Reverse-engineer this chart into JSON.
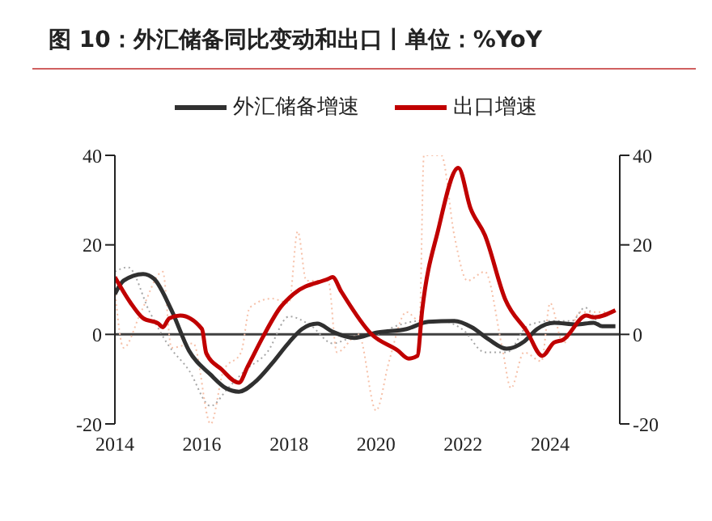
{
  "chart_data": {
    "type": "line",
    "title": "图 10：外汇储备同比变动和出口丨单位：%YoY",
    "legend": "top",
    "marker": "none",
    "xlim": [
      2014,
      2025.6
    ],
    "xticks": [
      2014,
      2016,
      2018,
      2020,
      2022,
      2024
    ],
    "ylim": [
      -20,
      40
    ],
    "yticks": [
      -20,
      0,
      20,
      40
    ],
    "y2lim": [
      -20,
      40
    ],
    "y2ticks": [
      -20,
      0,
      20,
      40
    ],
    "ref_lines": [
      {
        "axis": "y",
        "value": 0,
        "color": "#404040"
      }
    ],
    "series": [
      {
        "color": "#a6a6a6",
        "line_style": "dotted",
        "x": [
          2014.0,
          2014.3,
          2014.8,
          2015.2,
          2015.7,
          2016.2,
          2016.6,
          2017.0,
          2017.5,
          2018.0,
          2018.5,
          2019.0,
          2019.5,
          2020.0,
          2020.5,
          2021.0,
          2021.5,
          2022.0,
          2022.5,
          2023.0,
          2023.5,
          2024.0,
          2024.5,
          2024.8,
          2025.2,
          2025.5
        ],
        "values": [
          14,
          15,
          5,
          -2,
          -8,
          -16,
          -12,
          -8,
          -4,
          4,
          2,
          -2,
          -0.5,
          0,
          2,
          3,
          3,
          1,
          -4,
          -4,
          2,
          3,
          3,
          6,
          2,
          2
        ]
      },
      {
        "color": "#f6c0a8",
        "line_style": "dotted",
        "x": [
          2014.0,
          2014.2,
          2014.6,
          2015.1,
          2015.3,
          2015.8,
          2016.2,
          2016.5,
          2016.9,
          2017.1,
          2017.6,
          2018.0,
          2018.2,
          2018.4,
          2018.9,
          2019.1,
          2019.6,
          2020.0,
          2020.3,
          2020.7,
          2021.0,
          2021.1,
          2021.5,
          2021.8,
          2022.1,
          2022.5,
          2022.9,
          2023.1,
          2023.4,
          2023.8,
          2024.0,
          2024.3,
          2024.7,
          2025.2,
          2025.5
        ],
        "values": [
          10,
          -3,
          5,
          14,
          -3,
          -2,
          -20,
          -8,
          -4,
          6,
          8,
          7,
          23,
          12,
          12,
          -4,
          0,
          -17,
          -6,
          5,
          3,
          40,
          40,
          22,
          12,
          14,
          -3,
          -12,
          -4,
          -6,
          7,
          -2,
          5,
          5,
          5
        ]
      },
      {
        "name": "外汇储备增速",
        "color": "#303030",
        "line_style": "solid",
        "x": [
          2014.0,
          2014.2,
          2014.65,
          2014.9,
          2015.3,
          2015.7,
          2016.2,
          2016.55,
          2016.85,
          2017.2,
          2017.6,
          2018.0,
          2018.3,
          2018.65,
          2019.0,
          2019.5,
          2020.0,
          2020.7,
          2021.2,
          2021.8,
          2022.2,
          2022.6,
          2023.0,
          2023.4,
          2023.7,
          2024.1,
          2024.6,
          2025.0,
          2025.2,
          2025.5
        ],
        "values": [
          9,
          12,
          13.5,
          12.4,
          5.4,
          -3.6,
          -9,
          -12,
          -12.8,
          -10.8,
          -6.6,
          -1.8,
          1.2,
          2.4,
          0.6,
          -0.8,
          0.4,
          1.2,
          2.8,
          3,
          1.6,
          -1.2,
          -3.2,
          -1.6,
          1.2,
          2.6,
          2.2,
          2.6,
          1.8,
          1.8
        ]
      },
      {
        "name": "出口增速",
        "color": "#c00000",
        "line_style": "solid",
        "x": [
          2014.0,
          2014.35,
          2014.65,
          2015.0,
          2015.1,
          2015.25,
          2015.5,
          2016.0,
          2016.1,
          2016.45,
          2016.85,
          2017.05,
          2017.4,
          2017.8,
          2018.1,
          2018.9,
          2019.0,
          2019.2,
          2019.9,
          2020.5,
          2020.75,
          2020.95,
          2021.06,
          2021.43,
          2021.89,
          2022.17,
          2022.5,
          2022.97,
          2023.47,
          2023.82,
          2024.09,
          2024.3,
          2024.83,
          2025.0,
          2025.5
        ],
        "values": [
          12.8,
          7.2,
          3.6,
          2.4,
          1.6,
          3.6,
          4.2,
          1.2,
          -4.2,
          -7.8,
          -10.8,
          -7.2,
          -0.6,
          6,
          9,
          12.4,
          12.8,
          9.6,
          0,
          -3.6,
          -5.4,
          -4.8,
          5.4,
          23.4,
          37.2,
          28.2,
          22.2,
          7.8,
          0.6,
          -4.8,
          -1.8,
          -1.2,
          4.2,
          3.8,
          5.4
        ]
      }
    ]
  }
}
